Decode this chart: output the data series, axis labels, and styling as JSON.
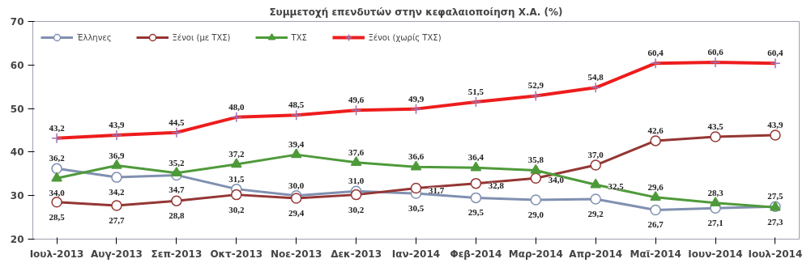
{
  "chart_data": {
    "type": "line",
    "title": "Συμμετοχή επενδυτών στην κεφαλαιοποίηση Χ.Α. (%)",
    "categories": [
      "Ιουλ-2013",
      "Αυγ-2013",
      "Σεπ-2013",
      "Οκτ-2013",
      "Νοε-2013",
      "Δεκ-2013",
      "Ιαν-2014",
      "Φεβ-2014",
      "Μαρ-2014",
      "Απρ-2014",
      "Μαϊ-2014",
      "Ιουν-2014",
      "Ιουλ-2014"
    ],
    "series": [
      {
        "name": "Έλληνες",
        "color": "#8090b0",
        "marker": "circle",
        "values": [
          36.2,
          34.2,
          34.7,
          31.5,
          30.0,
          31.0,
          30.5,
          29.5,
          29.0,
          29.2,
          26.7,
          27.1,
          27.5
        ],
        "value_labels": [
          "36,2",
          "34,2",
          "34,7",
          "31,5",
          "30,0",
          "31,0",
          "30,5",
          "29,5",
          "29,0",
          "29,2",
          "26,7",
          "27,1",
          "27,5"
        ]
      },
      {
        "name": "Ξένοι (με ΤΧΣ)",
        "color": "#943634",
        "marker": "circle",
        "values": [
          28.5,
          27.7,
          28.8,
          30.2,
          29.4,
          30.2,
          31.7,
          32.8,
          34.0,
          37.0,
          42.6,
          43.5,
          43.9
        ],
        "value_labels": [
          "28,5",
          "27,7",
          "28,8",
          "30,2",
          "29,4",
          "30,2",
          "31,7",
          "32,8",
          "34,0",
          "37,0",
          "42,6",
          "43,5",
          "43,9"
        ]
      },
      {
        "name": "ΤΧΣ",
        "color": "#4e9a3a",
        "marker": "triangle",
        "values": [
          34.0,
          36.9,
          35.2,
          37.2,
          39.4,
          37.6,
          36.6,
          36.4,
          35.8,
          32.5,
          29.6,
          28.3,
          27.3
        ],
        "value_labels": [
          "34,0",
          "36,9",
          "35,2",
          "37,2",
          "39,4",
          "37,6",
          "36,6",
          "36,4",
          "35,8",
          "32,5",
          "29,6",
          "28,3",
          "27,3"
        ]
      },
      {
        "name": "Ξένοι (χωρίς ΤΧΣ)",
        "color": "#ee1c1c",
        "marker": "cross",
        "values": [
          43.2,
          43.9,
          44.5,
          48.0,
          48.5,
          49.6,
          49.9,
          51.5,
          52.9,
          54.8,
          60.4,
          60.6,
          60.4
        ],
        "value_labels": [
          "43,2",
          "43,9",
          "44,5",
          "48,0",
          "48,5",
          "49,6",
          "49,9",
          "51,5",
          "52,9",
          "54,8",
          "60,4",
          "60,6",
          "60,4"
        ]
      }
    ],
    "ylim": [
      20,
      70
    ],
    "yticks": [
      20,
      30,
      40,
      50,
      60,
      70
    ],
    "grid": false,
    "legend": "top left",
    "line_style": "solid"
  }
}
